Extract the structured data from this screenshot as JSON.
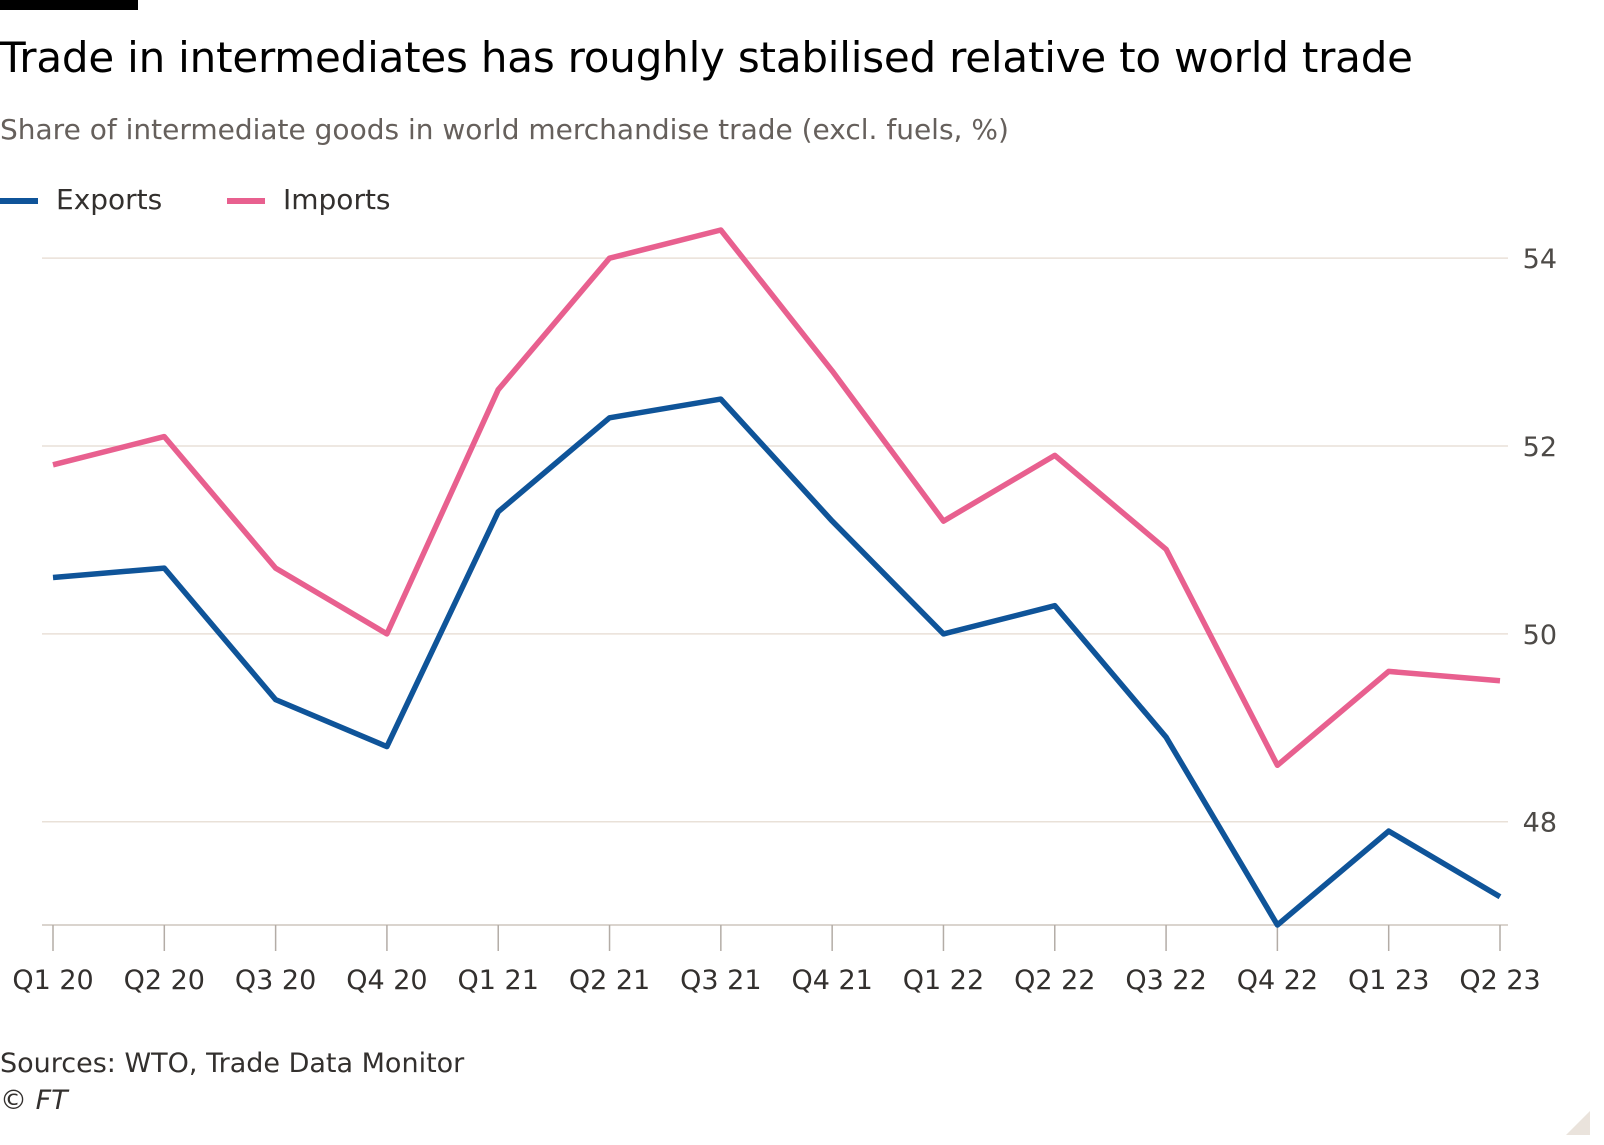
{
  "header": {
    "title": "Trade in intermediates has roughly stabilised relative to world trade",
    "subtitle": "Share of intermediate goods in world merchandise trade (excl. fuels, %)"
  },
  "legend": {
    "items": [
      {
        "label": "Exports",
        "color": "#0f5499"
      },
      {
        "label": "Imports",
        "color": "#e8608f"
      }
    ]
  },
  "chart_data": {
    "type": "line",
    "title": "Trade in intermediates has roughly stabilised relative to world trade",
    "subtitle": "Share of intermediate goods in world merchandise trade (excl. fuels, %)",
    "xlabel": "",
    "ylabel": "",
    "categories": [
      "Q1 20",
      "Q2 20",
      "Q3 20",
      "Q4 20",
      "Q1 21",
      "Q2 21",
      "Q3 21",
      "Q4 21",
      "Q1 22",
      "Q2 22",
      "Q3 22",
      "Q4 22",
      "Q1 23",
      "Q2 23"
    ],
    "series": [
      {
        "name": "Exports",
        "color": "#0f5499",
        "values": [
          50.6,
          50.7,
          49.3,
          48.8,
          51.3,
          52.3,
          52.5,
          51.2,
          50.0,
          50.3,
          48.9,
          46.9,
          47.9,
          47.2
        ]
      },
      {
        "name": "Imports",
        "color": "#e8608f",
        "values": [
          51.8,
          52.1,
          50.7,
          50.0,
          52.6,
          54.0,
          54.3,
          52.8,
          51.2,
          51.9,
          50.9,
          48.6,
          49.6,
          49.5
        ]
      }
    ],
    "ylim": [
      46.9,
      54.3
    ],
    "yticks": [
      48,
      50,
      52,
      54
    ],
    "grid": true,
    "y_axis_side": "right",
    "legend_position": "top-left"
  },
  "footer": {
    "source": "Sources: WTO, Trade Data Monitor",
    "copyright": "© FT"
  }
}
